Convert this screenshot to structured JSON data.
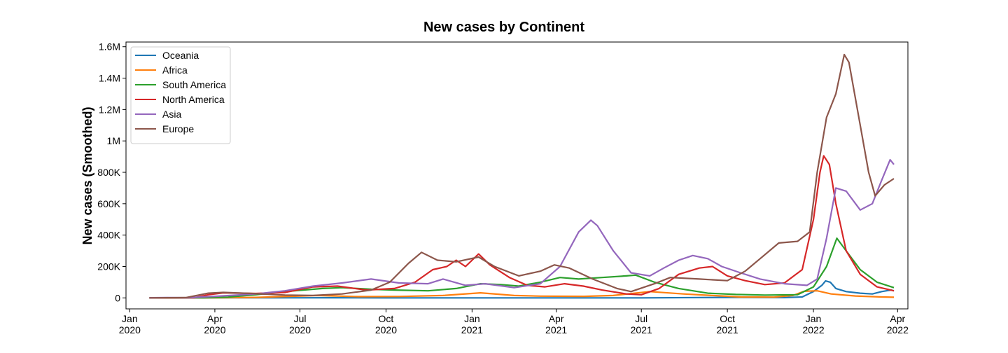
{
  "chart_data": {
    "type": "line",
    "title": "New cases by Continent",
    "xlabel": "",
    "ylabel": "New cases (Smoothed)",
    "x_range": [
      "2019-12-28",
      "2022-04-12"
    ],
    "ylim": [
      -70000,
      1630000
    ],
    "grid": false,
    "legend_position": "top-left",
    "x_ticks": [
      {
        "date": "2020-01-01",
        "line1": "Jan",
        "line2": "2020"
      },
      {
        "date": "2020-04-01",
        "line1": "Apr",
        "line2": "2020"
      },
      {
        "date": "2020-07-01",
        "line1": "Jul",
        "line2": "2020"
      },
      {
        "date": "2020-10-01",
        "line1": "Oct",
        "line2": "2020"
      },
      {
        "date": "2021-01-01",
        "line1": "Jan",
        "line2": "2021"
      },
      {
        "date": "2021-04-01",
        "line1": "Apr",
        "line2": "2021"
      },
      {
        "date": "2021-07-01",
        "line1": "Jul",
        "line2": "2021"
      },
      {
        "date": "2021-10-01",
        "line1": "Oct",
        "line2": "2021"
      },
      {
        "date": "2022-01-01",
        "line1": "Jan",
        "line2": "2022"
      },
      {
        "date": "2022-04-01",
        "line1": "Apr",
        "line2": "2022"
      }
    ],
    "y_ticks": [
      {
        "value": 0,
        "label": "0"
      },
      {
        "value": 200000,
        "label": "200K"
      },
      {
        "value": 400000,
        "label": "400K"
      },
      {
        "value": 600000,
        "label": "600K"
      },
      {
        "value": 800000,
        "label": "800K"
      },
      {
        "value": 1000000,
        "label": "1M"
      },
      {
        "value": 1200000,
        "label": "1.2M"
      },
      {
        "value": 1400000,
        "label": "1.4M"
      },
      {
        "value": 1600000,
        "label": "1.6M"
      }
    ],
    "series": [
      {
        "name": "Oceania",
        "color": "#1f77b4",
        "points": [
          [
            "2020-01-22",
            0
          ],
          [
            "2020-04-01",
            500
          ],
          [
            "2020-07-01",
            300
          ],
          [
            "2020-08-05",
            800
          ],
          [
            "2020-10-01",
            200
          ],
          [
            "2021-01-01",
            200
          ],
          [
            "2021-04-01",
            100
          ],
          [
            "2021-07-01",
            200
          ],
          [
            "2021-09-01",
            2500
          ],
          [
            "2021-10-15",
            3000
          ],
          [
            "2021-12-01",
            2000
          ],
          [
            "2021-12-20",
            6000
          ],
          [
            "2022-01-01",
            40000
          ],
          [
            "2022-01-10",
            80000
          ],
          [
            "2022-01-14",
            108000
          ],
          [
            "2022-01-19",
            100000
          ],
          [
            "2022-01-25",
            60000
          ],
          [
            "2022-02-05",
            40000
          ],
          [
            "2022-02-20",
            30000
          ],
          [
            "2022-03-05",
            25000
          ],
          [
            "2022-03-15",
            40000
          ],
          [
            "2022-03-25",
            50000
          ],
          [
            "2022-03-28",
            45000
          ]
        ]
      },
      {
        "name": "Africa",
        "color": "#ff7f0e",
        "points": [
          [
            "2020-01-22",
            0
          ],
          [
            "2020-04-01",
            300
          ],
          [
            "2020-05-15",
            3000
          ],
          [
            "2020-07-20",
            15000
          ],
          [
            "2020-09-01",
            8000
          ],
          [
            "2020-10-15",
            9000
          ],
          [
            "2020-12-01",
            15000
          ],
          [
            "2021-01-10",
            32000
          ],
          [
            "2021-02-15",
            15000
          ],
          [
            "2021-03-15",
            11000
          ],
          [
            "2021-05-01",
            10000
          ],
          [
            "2021-06-01",
            15000
          ],
          [
            "2021-07-10",
            40000
          ],
          [
            "2021-08-15",
            25000
          ],
          [
            "2021-09-15",
            15000
          ],
          [
            "2021-10-15",
            6000
          ],
          [
            "2021-11-20",
            5000
          ],
          [
            "2021-12-10",
            15000
          ],
          [
            "2021-12-22",
            42000
          ],
          [
            "2022-01-05",
            45000
          ],
          [
            "2022-01-20",
            25000
          ],
          [
            "2022-02-15",
            12000
          ],
          [
            "2022-03-15",
            6000
          ],
          [
            "2022-03-28",
            4000
          ]
        ]
      },
      {
        "name": "South America",
        "color": "#2ca02c",
        "points": [
          [
            "2020-01-22",
            0
          ],
          [
            "2020-03-20",
            1000
          ],
          [
            "2020-04-15",
            5000
          ],
          [
            "2020-05-15",
            20000
          ],
          [
            "2020-06-15",
            40000
          ],
          [
            "2020-07-25",
            60000
          ],
          [
            "2020-08-15",
            65000
          ],
          [
            "2020-09-15",
            55000
          ],
          [
            "2020-10-10",
            50000
          ],
          [
            "2020-11-15",
            45000
          ],
          [
            "2020-12-15",
            60000
          ],
          [
            "2021-01-10",
            90000
          ],
          [
            "2021-02-01",
            85000
          ],
          [
            "2021-02-20",
            75000
          ],
          [
            "2021-03-15",
            100000
          ],
          [
            "2021-04-05",
            130000
          ],
          [
            "2021-04-25",
            120000
          ],
          [
            "2021-05-20",
            130000
          ],
          [
            "2021-06-15",
            140000
          ],
          [
            "2021-06-25",
            145000
          ],
          [
            "2021-07-15",
            100000
          ],
          [
            "2021-08-10",
            60000
          ],
          [
            "2021-09-10",
            30000
          ],
          [
            "2021-10-10",
            22000
          ],
          [
            "2021-11-10",
            18000
          ],
          [
            "2021-12-15",
            20000
          ],
          [
            "2022-01-01",
            70000
          ],
          [
            "2022-01-15",
            200000
          ],
          [
            "2022-01-26",
            380000
          ],
          [
            "2022-02-05",
            300000
          ],
          [
            "2022-02-20",
            180000
          ],
          [
            "2022-03-10",
            100000
          ],
          [
            "2022-03-28",
            65000
          ]
        ]
      },
      {
        "name": "North America",
        "color": "#d62728",
        "points": [
          [
            "2020-01-22",
            0
          ],
          [
            "2020-03-10",
            1000
          ],
          [
            "2020-03-25",
            20000
          ],
          [
            "2020-04-10",
            32000
          ],
          [
            "2020-05-15",
            28000
          ],
          [
            "2020-06-15",
            35000
          ],
          [
            "2020-07-15",
            70000
          ],
          [
            "2020-08-10",
            75000
          ],
          [
            "2020-09-10",
            50000
          ],
          [
            "2020-10-10",
            60000
          ],
          [
            "2020-11-01",
            100000
          ],
          [
            "2020-11-20",
            180000
          ],
          [
            "2020-12-05",
            200000
          ],
          [
            "2020-12-15",
            240000
          ],
          [
            "2020-12-25",
            200000
          ],
          [
            "2021-01-08",
            280000
          ],
          [
            "2021-01-20",
            210000
          ],
          [
            "2021-02-10",
            130000
          ],
          [
            "2021-03-01",
            80000
          ],
          [
            "2021-03-20",
            70000
          ],
          [
            "2021-04-10",
            90000
          ],
          [
            "2021-04-30",
            75000
          ],
          [
            "2021-05-20",
            50000
          ],
          [
            "2021-06-15",
            25000
          ],
          [
            "2021-07-01",
            20000
          ],
          [
            "2021-07-20",
            60000
          ],
          [
            "2021-08-10",
            150000
          ],
          [
            "2021-09-01",
            190000
          ],
          [
            "2021-09-15",
            200000
          ],
          [
            "2021-10-01",
            140000
          ],
          [
            "2021-10-20",
            110000
          ],
          [
            "2021-11-10",
            85000
          ],
          [
            "2021-12-01",
            95000
          ],
          [
            "2021-12-20",
            180000
          ],
          [
            "2022-01-01",
            500000
          ],
          [
            "2022-01-08",
            800000
          ],
          [
            "2022-01-12",
            905000
          ],
          [
            "2022-01-18",
            850000
          ],
          [
            "2022-01-25",
            600000
          ],
          [
            "2022-02-05",
            300000
          ],
          [
            "2022-02-20",
            150000
          ],
          [
            "2022-03-10",
            70000
          ],
          [
            "2022-03-28",
            45000
          ]
        ]
      },
      {
        "name": "Asia",
        "color": "#9467bd",
        "points": [
          [
            "2020-01-22",
            1000
          ],
          [
            "2020-02-10",
            2000
          ],
          [
            "2020-03-01",
            1000
          ],
          [
            "2020-04-01",
            10000
          ],
          [
            "2020-05-15",
            25000
          ],
          [
            "2020-06-15",
            45000
          ],
          [
            "2020-07-15",
            75000
          ],
          [
            "2020-08-15",
            95000
          ],
          [
            "2020-09-15",
            120000
          ],
          [
            "2020-10-15",
            95000
          ],
          [
            "2020-11-15",
            90000
          ],
          [
            "2020-12-01",
            120000
          ],
          [
            "2020-12-25",
            80000
          ],
          [
            "2021-01-15",
            90000
          ],
          [
            "2021-02-15",
            65000
          ],
          [
            "2021-03-15",
            90000
          ],
          [
            "2021-04-05",
            200000
          ],
          [
            "2021-04-25",
            420000
          ],
          [
            "2021-05-08",
            495000
          ],
          [
            "2021-05-15",
            460000
          ],
          [
            "2021-06-01",
            300000
          ],
          [
            "2021-06-20",
            160000
          ],
          [
            "2021-07-10",
            140000
          ],
          [
            "2021-07-25",
            190000
          ],
          [
            "2021-08-10",
            240000
          ],
          [
            "2021-08-25",
            270000
          ],
          [
            "2021-09-10",
            250000
          ],
          [
            "2021-09-25",
            200000
          ],
          [
            "2021-10-15",
            160000
          ],
          [
            "2021-11-05",
            120000
          ],
          [
            "2021-12-01",
            90000
          ],
          [
            "2021-12-25",
            80000
          ],
          [
            "2022-01-05",
            120000
          ],
          [
            "2022-01-15",
            380000
          ],
          [
            "2022-01-25",
            700000
          ],
          [
            "2022-02-05",
            680000
          ],
          [
            "2022-02-20",
            560000
          ],
          [
            "2022-03-05",
            600000
          ],
          [
            "2022-03-15",
            750000
          ],
          [
            "2022-03-24",
            880000
          ],
          [
            "2022-03-28",
            850000
          ]
        ]
      },
      {
        "name": "Europe",
        "color": "#8c564b",
        "points": [
          [
            "2020-01-22",
            0
          ],
          [
            "2020-03-01",
            2000
          ],
          [
            "2020-03-25",
            30000
          ],
          [
            "2020-04-10",
            35000
          ],
          [
            "2020-05-10",
            28000
          ],
          [
            "2020-06-15",
            18000
          ],
          [
            "2020-07-15",
            15000
          ],
          [
            "2020-08-15",
            25000
          ],
          [
            "2020-09-15",
            50000
          ],
          [
            "2020-10-05",
            100000
          ],
          [
            "2020-10-25",
            220000
          ],
          [
            "2020-11-08",
            290000
          ],
          [
            "2020-11-25",
            240000
          ],
          [
            "2020-12-15",
            230000
          ],
          [
            "2021-01-08",
            260000
          ],
          [
            "2021-01-25",
            200000
          ],
          [
            "2021-02-20",
            140000
          ],
          [
            "2021-03-15",
            170000
          ],
          [
            "2021-03-30",
            210000
          ],
          [
            "2021-04-15",
            190000
          ],
          [
            "2021-05-10",
            120000
          ],
          [
            "2021-06-05",
            60000
          ],
          [
            "2021-06-20",
            40000
          ],
          [
            "2021-07-15",
            90000
          ],
          [
            "2021-08-01",
            130000
          ],
          [
            "2021-09-01",
            120000
          ],
          [
            "2021-10-01",
            110000
          ],
          [
            "2021-10-20",
            170000
          ],
          [
            "2021-11-05",
            250000
          ],
          [
            "2021-11-25",
            350000
          ],
          [
            "2021-12-15",
            360000
          ],
          [
            "2021-12-28",
            420000
          ],
          [
            "2022-01-05",
            800000
          ],
          [
            "2022-01-15",
            1150000
          ],
          [
            "2022-01-25",
            1300000
          ],
          [
            "2022-02-03",
            1550000
          ],
          [
            "2022-02-08",
            1500000
          ],
          [
            "2022-02-20",
            1100000
          ],
          [
            "2022-03-01",
            800000
          ],
          [
            "2022-03-08",
            650000
          ],
          [
            "2022-03-18",
            720000
          ],
          [
            "2022-03-28",
            760000
          ]
        ]
      }
    ]
  }
}
